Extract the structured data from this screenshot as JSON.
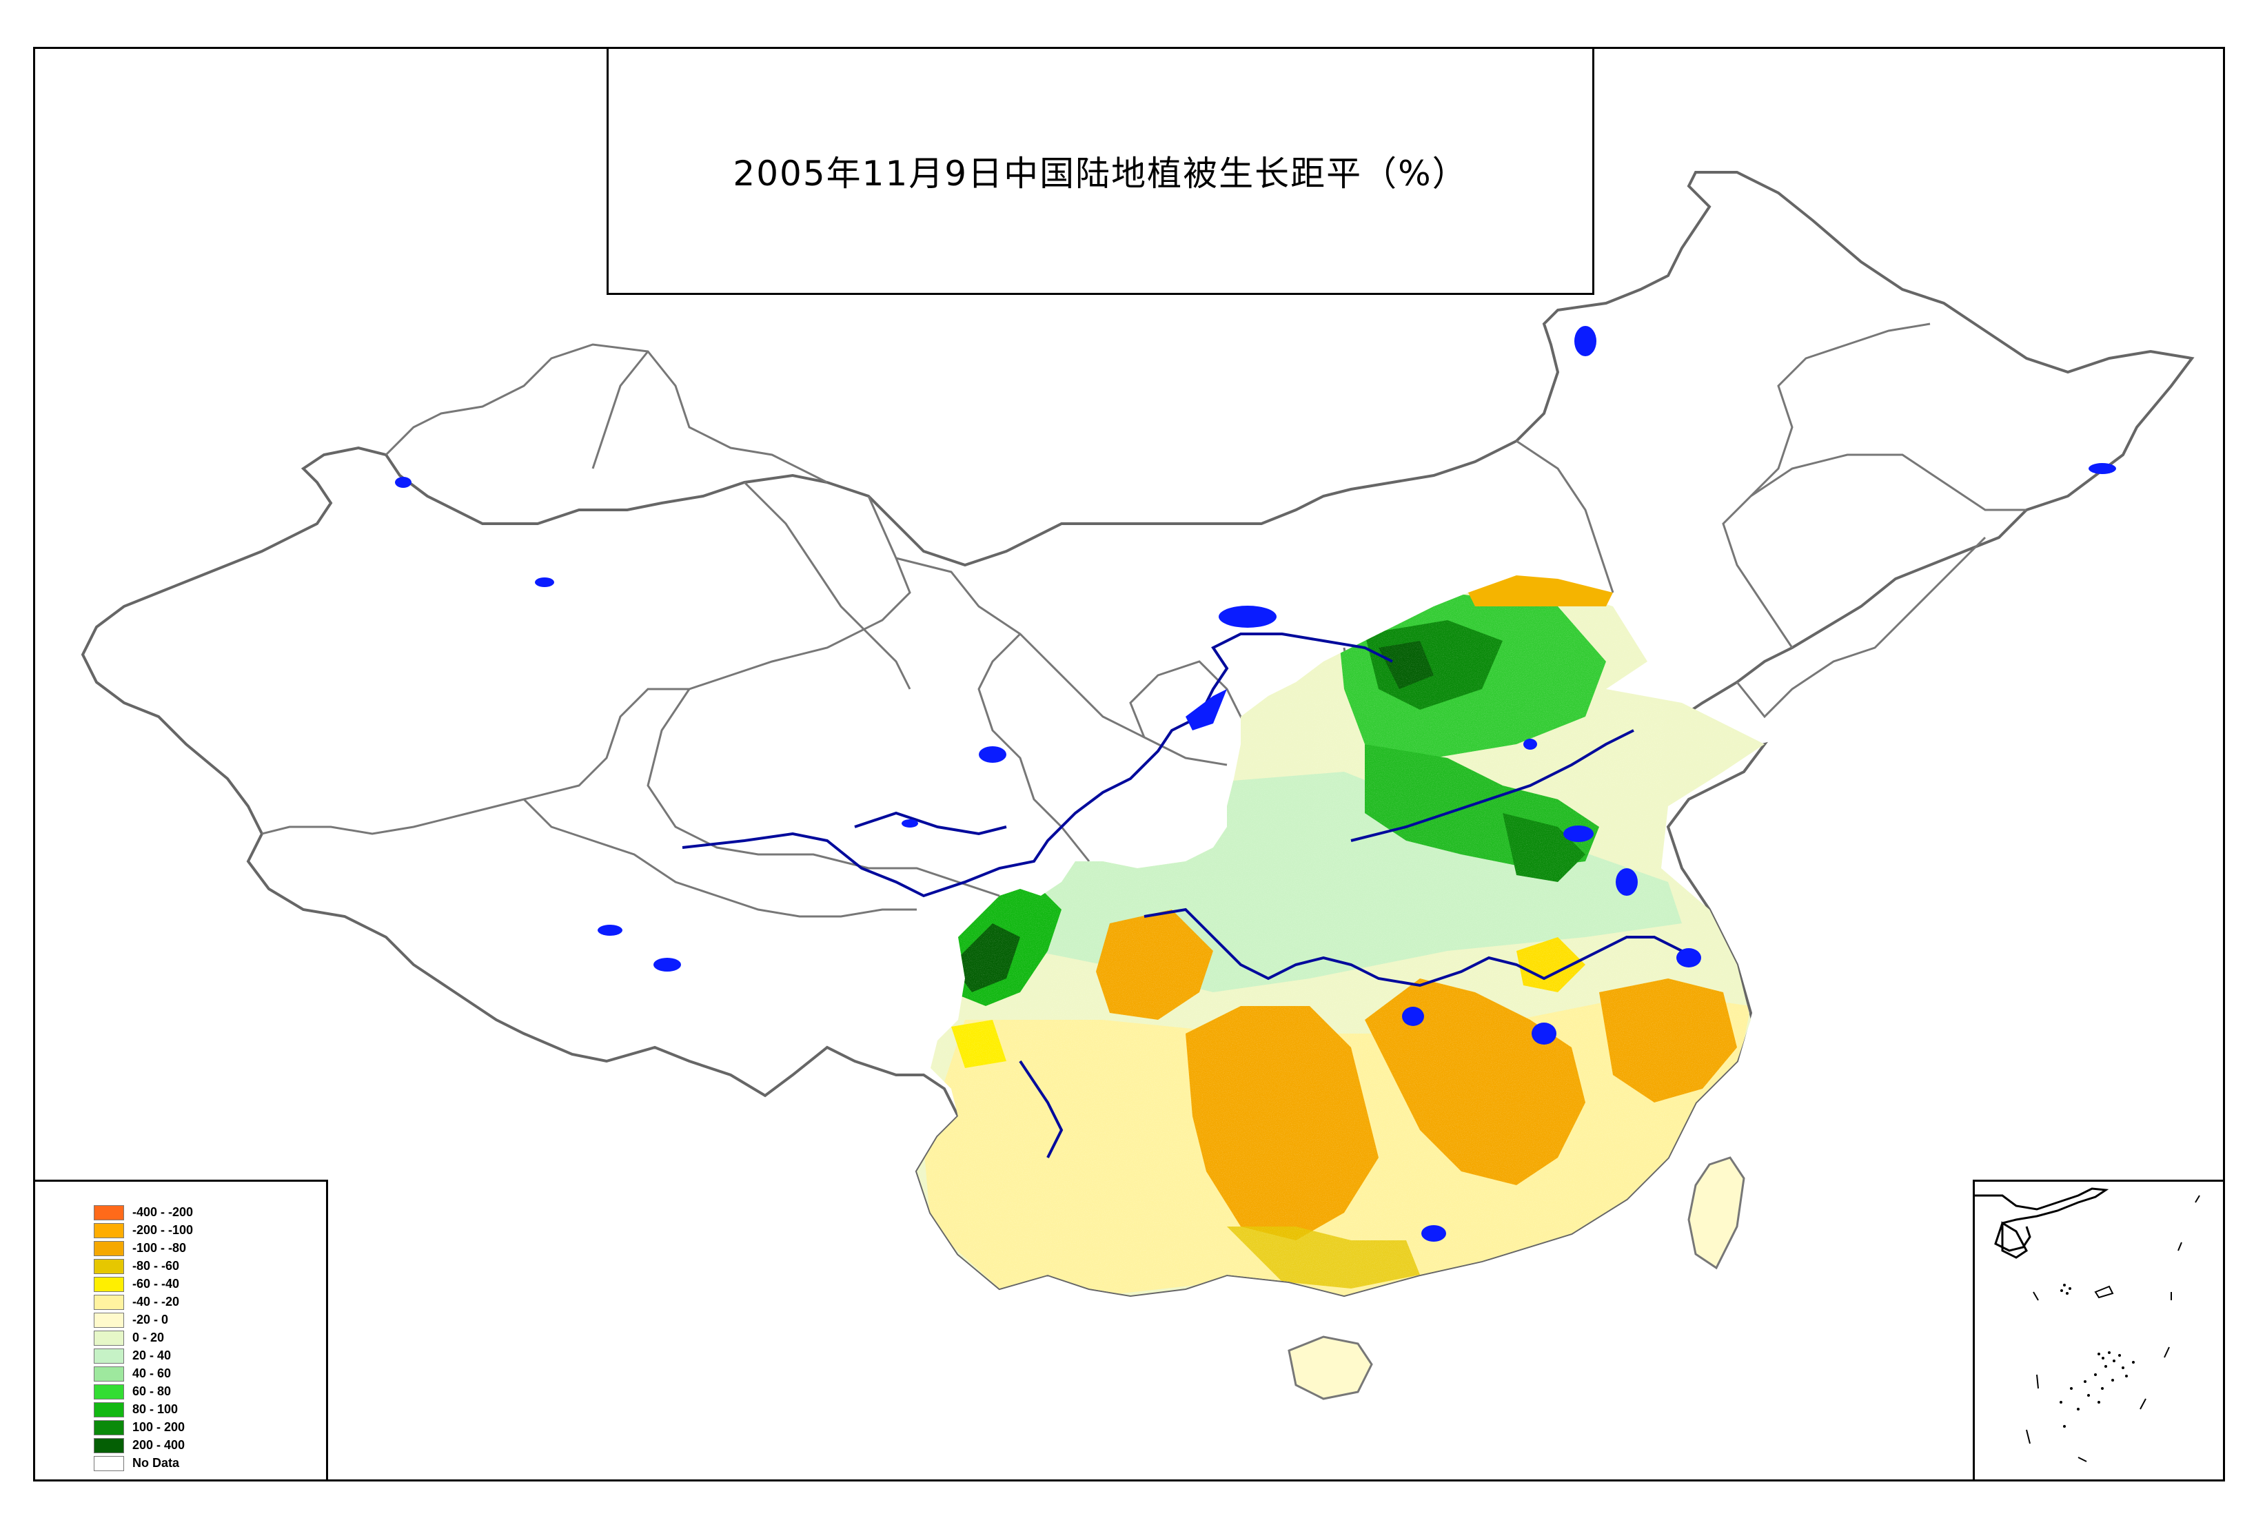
{
  "title": "2005年11月9日中国陆地植被生长距平（%）",
  "legend": [
    {
      "label": "-400 - -200",
      "color": "#ff6a1a"
    },
    {
      "label": "-200 - -100",
      "color": "#ffad00"
    },
    {
      "label": "-100 - -80",
      "color": "#f5a800"
    },
    {
      "label": "-80 - -60",
      "color": "#e6c700"
    },
    {
      "label": "-60 - -40",
      "color": "#ffef00"
    },
    {
      "label": "-40 - -20",
      "color": "#fff3a0"
    },
    {
      "label": "-20 - 0",
      "color": "#fffacc"
    },
    {
      "label": "0 - 20",
      "color": "#e6f7c8"
    },
    {
      "label": "20 - 40",
      "color": "#c6f2c6"
    },
    {
      "label": "40 - 60",
      "color": "#9ee89e"
    },
    {
      "label": "60 - 80",
      "color": "#33dd33"
    },
    {
      "label": "80 - 100",
      "color": "#12b812"
    },
    {
      "label": "100 - 200",
      "color": "#0a8a0a"
    },
    {
      "label": "200 - 400",
      "color": "#045f04"
    },
    {
      "label": "No Data",
      "color": "#ffffff"
    }
  ]
}
